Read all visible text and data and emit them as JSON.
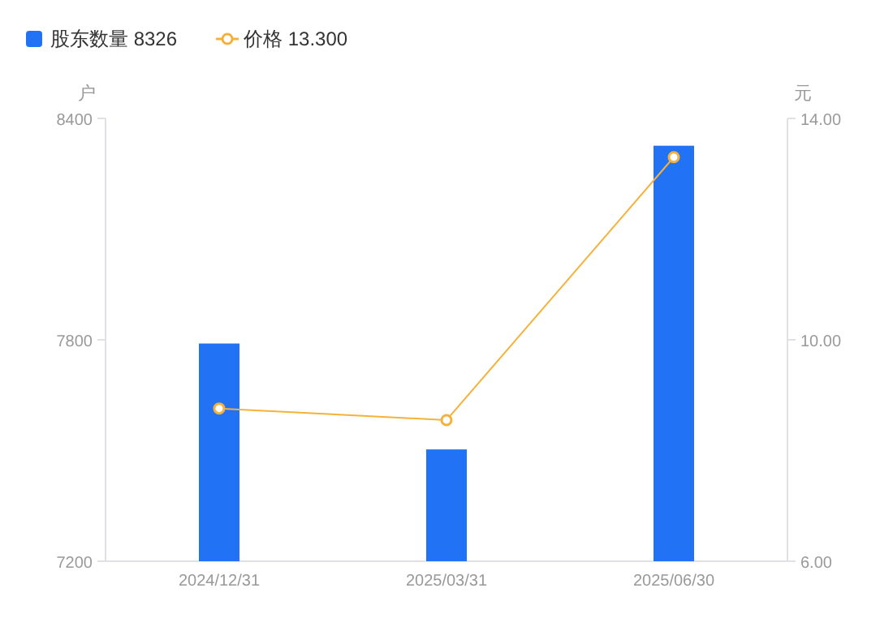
{
  "chart_data": {
    "type": "bar",
    "categories": [
      "2024/12/31",
      "2025/03/31",
      "2025/06/30"
    ],
    "series": [
      {
        "name": "股东数量 8326",
        "color": "#2272f5",
        "values": [
          7790,
          7503,
          8326
        ]
      },
      {
        "name": "价格 13.300",
        "type": "line",
        "axis": "y2",
        "color": "#f5b23a",
        "marker": "circle",
        "values": [
          8.76,
          8.55,
          13.3
        ]
      }
    ],
    "ylabel": "户",
    "y2label": "元",
    "ylim": [
      7200,
      8400
    ],
    "yticks": [
      7200,
      7800,
      8400
    ],
    "y2lim": [
      6,
      14
    ],
    "y2ticks": [
      {
        "value": 6,
        "label": "6.00"
      },
      {
        "value": 10,
        "label": "10.00"
      },
      {
        "value": 14,
        "label": "14.00"
      }
    ],
    "legend": "top left",
    "grid": false
  }
}
